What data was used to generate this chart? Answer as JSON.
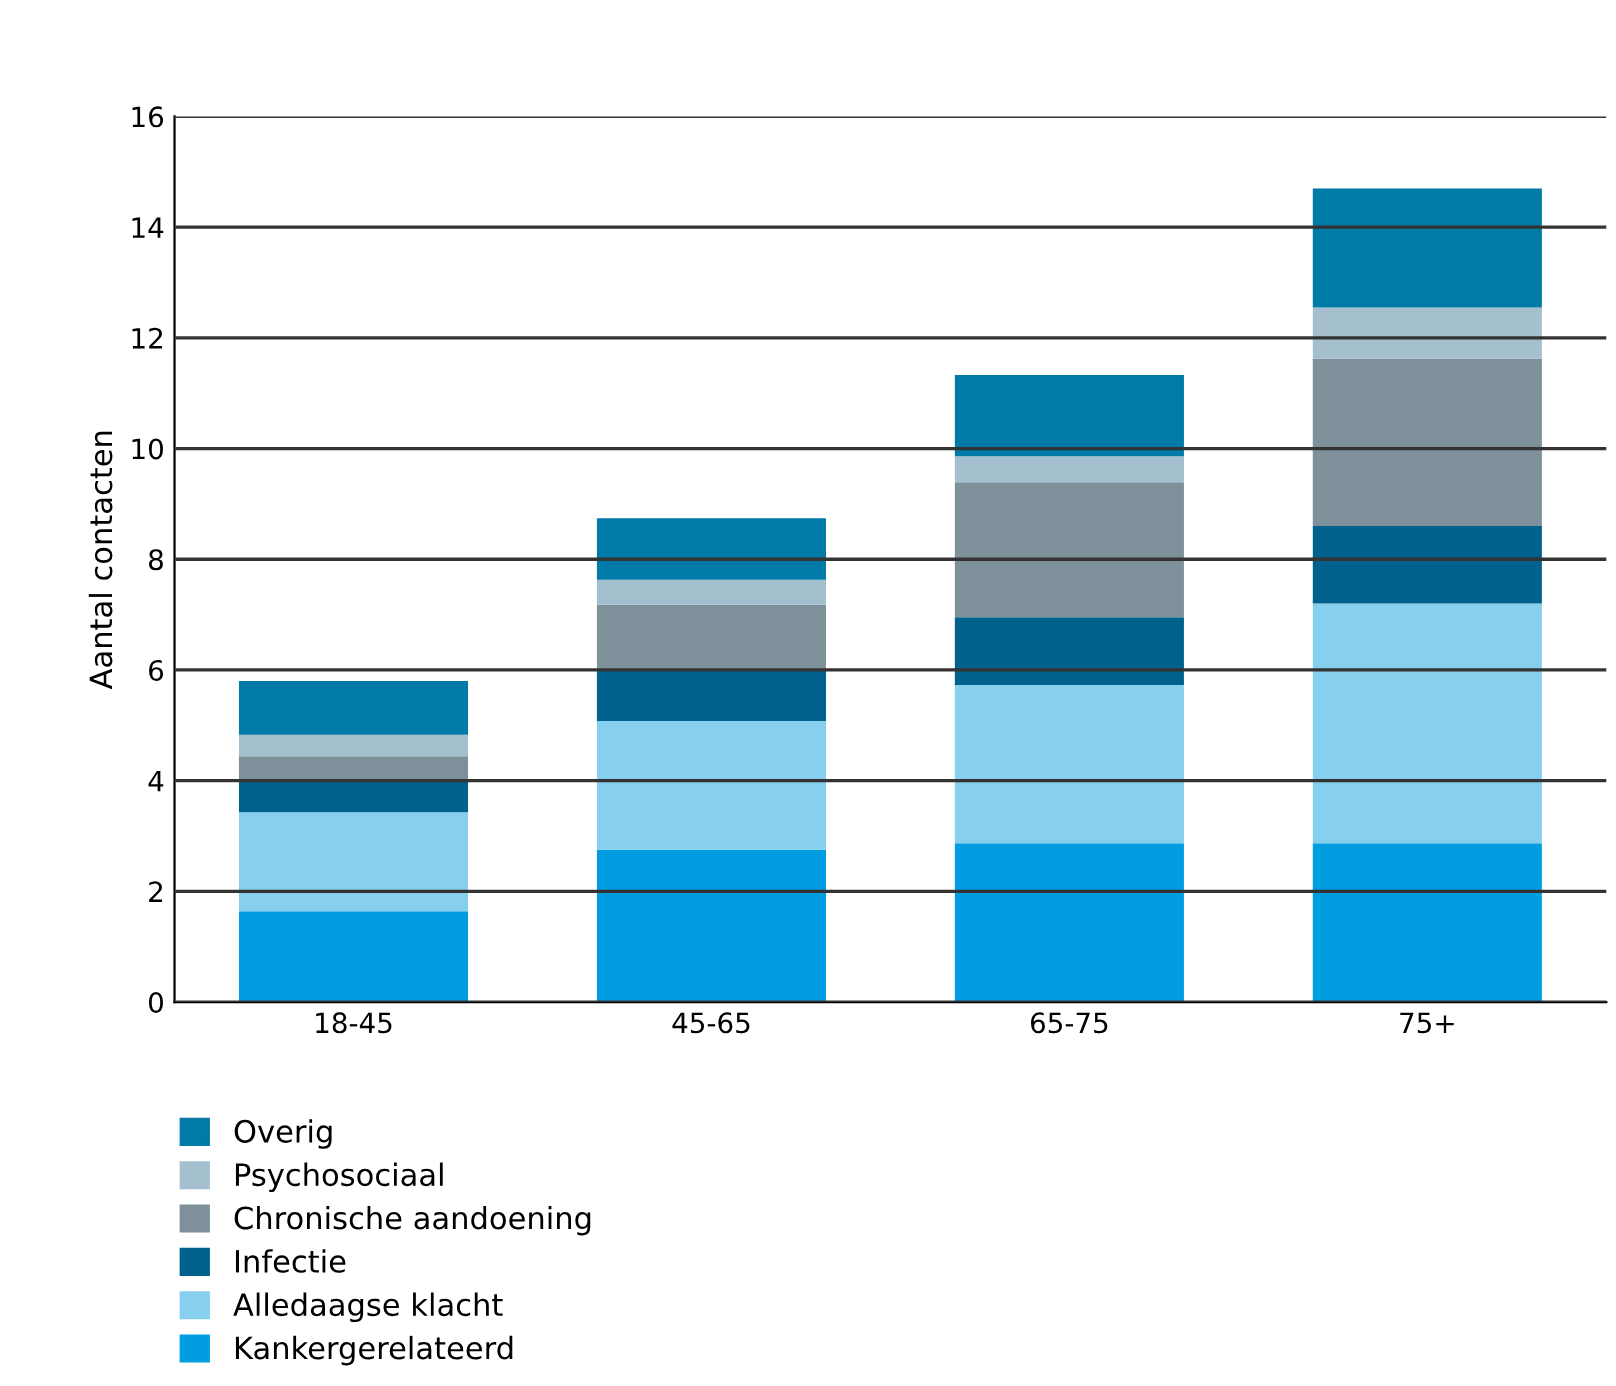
{
  "chart_data": {
    "type": "bar",
    "stacked": true,
    "ylabel": "Aantal contacten",
    "categories": [
      "18-45",
      "45-65",
      "65-75",
      "75+"
    ],
    "series": [
      {
        "name": "Kankergerelateerd",
        "color": "#009ee0",
        "values": [
          1.64,
          2.75,
          2.87,
          2.87
        ]
      },
      {
        "name": "Alledaagse klacht",
        "color": "#86cfef",
        "values": [
          1.79,
          2.33,
          2.86,
          4.33
        ]
      },
      {
        "name": "Infectie",
        "color": "#00618d",
        "values": [
          0.57,
          0.92,
          1.22,
          1.4
        ]
      },
      {
        "name": "Chronische aandoening",
        "color": "#7e909a",
        "values": [
          0.44,
          1.18,
          2.44,
          3.02
        ]
      },
      {
        "name": "Psychosociaal",
        "color": "#a4bfcd",
        "values": [
          0.39,
          0.45,
          0.47,
          0.93
        ]
      },
      {
        "name": "Overig",
        "color": "#007aa6",
        "values": [
          0.97,
          1.11,
          1.47,
          2.15
        ]
      }
    ],
    "ylim": [
      0,
      16
    ],
    "yticks": [
      0,
      2,
      4,
      6,
      8,
      10,
      12,
      14,
      16
    ],
    "grid": "y",
    "legend": "bottom left"
  }
}
